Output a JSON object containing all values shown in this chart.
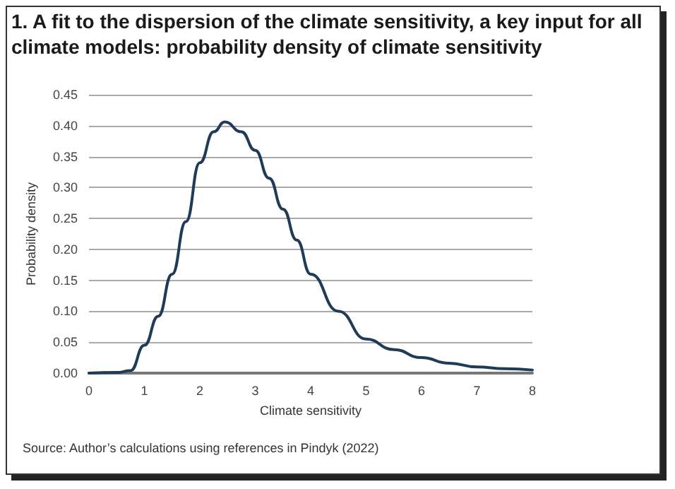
{
  "chart_data": {
    "type": "line",
    "title": "1. A fit to the dispersion of the climate sensitivity, a key input for all climate models: probability density of climate sensitivity",
    "xlabel": "Climate sensitivity",
    "ylabel": "Probability density",
    "annotations": [
      "Source: Author’s calculations using references in Pindyk (2022)"
    ],
    "x": [
      0,
      0.5,
      0.75,
      1,
      1.25,
      1.5,
      1.75,
      2,
      2.25,
      2.45,
      2.75,
      3,
      3.25,
      3.5,
      3.75,
      4,
      4.5,
      5,
      5.5,
      6,
      6.5,
      7,
      7.5,
      8
    ],
    "series": [
      {
        "color": "#1f3b57",
        "values": [
          0,
          0.001,
          0.004,
          0.045,
          0.092,
          0.16,
          0.245,
          0.34,
          0.39,
          0.406,
          0.39,
          0.36,
          0.315,
          0.265,
          0.215,
          0.16,
          0.1,
          0.055,
          0.038,
          0.025,
          0.016,
          0.01,
          0.007,
          0.005
        ]
      }
    ],
    "xlim": [
      0,
      8
    ],
    "xticks": [
      0,
      1,
      2,
      3,
      4,
      5,
      6,
      7,
      8
    ],
    "ylim": [
      0,
      0.45
    ],
    "yticks": [
      {
        "value": 0,
        "label": "0.00"
      },
      {
        "value": 0.05,
        "label": "0.05"
      },
      {
        "value": 0.1,
        "label": "0.10"
      },
      {
        "value": 0.15,
        "label": "0.15"
      },
      {
        "value": 0.2,
        "label": "0.20"
      },
      {
        "value": 0.25,
        "label": "0.25"
      },
      {
        "value": 0.3,
        "label": "0.30"
      },
      {
        "value": 0.35,
        "label": "0.35"
      },
      {
        "value": 0.4,
        "label": "0.40"
      },
      {
        "value": 0.45,
        "label": "0.45"
      }
    ],
    "grid": "y",
    "marker": "none",
    "line_style": "solid"
  }
}
